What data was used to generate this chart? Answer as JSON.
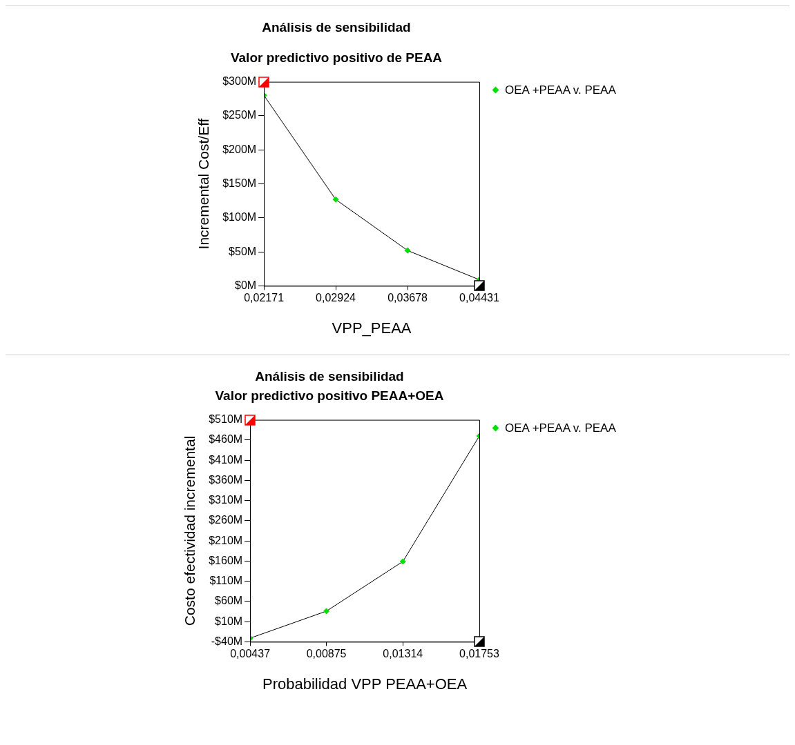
{
  "chart_data": [
    {
      "type": "line",
      "title": "Análisis de sensibilidad",
      "subtitle": "Valor predictivo positivo de PEAA",
      "xlabel": "VPP_PEAA",
      "ylabel": "Incremental Cost/Eff",
      "x": [
        0.02171,
        0.02924,
        0.03678,
        0.04431
      ],
      "series": [
        {
          "name": "OEA +PEAA v. PEAA",
          "color": "#00e000",
          "values": [
            280,
            127,
            52,
            9
          ]
        }
      ],
      "xlim": [
        0.02171,
        0.04431
      ],
      "xticks": [
        {
          "value": 0.02171,
          "label": "0,02171"
        },
        {
          "value": 0.02924,
          "label": "0,02924"
        },
        {
          "value": 0.03678,
          "label": "0,03678"
        },
        {
          "value": 0.04431,
          "label": "0,04431"
        }
      ],
      "ylim": [
        0,
        300
      ],
      "yticks": [
        {
          "value": 0,
          "label": "$0M"
        },
        {
          "value": 50,
          "label": "$50M"
        },
        {
          "value": 100,
          "label": "$100M"
        },
        {
          "value": 150,
          "label": "$150M"
        },
        {
          "value": 200,
          "label": "$200M"
        },
        {
          "value": 250,
          "label": "$250M"
        },
        {
          "value": 300,
          "label": "$300M"
        }
      ],
      "legend": "top right",
      "marker": "diamond",
      "line_style": "solid",
      "grid": false
    },
    {
      "type": "line",
      "title": "Análisis de sensibilidad",
      "subtitle": "Valor predictivo positivo PEAA+OEA",
      "xlabel": "Probabilidad VPP PEAA+OEA",
      "ylabel": "Costo efectividad incremental",
      "x": [
        0.00437,
        0.00875,
        0.01314,
        0.01753
      ],
      "series": [
        {
          "name": "OEA +PEAA v. PEAA",
          "color": "#00e000",
          "values": [
            -31,
            36,
            159,
            470
          ]
        }
      ],
      "xlim": [
        0.00437,
        0.01753
      ],
      "xticks": [
        {
          "value": 0.00437,
          "label": "0,00437"
        },
        {
          "value": 0.00875,
          "label": "0,00875"
        },
        {
          "value": 0.01314,
          "label": "0,01314"
        },
        {
          "value": 0.01753,
          "label": "0,01753"
        }
      ],
      "ylim": [
        -40,
        510
      ],
      "yticks": [
        {
          "value": -40,
          "label": "-$40M"
        },
        {
          "value": 10,
          "label": "$10M"
        },
        {
          "value": 60,
          "label": "$60M"
        },
        {
          "value": 110,
          "label": "$110M"
        },
        {
          "value": 160,
          "label": "$160M"
        },
        {
          "value": 210,
          "label": "$210M"
        },
        {
          "value": 260,
          "label": "$260M"
        },
        {
          "value": 310,
          "label": "$310M"
        },
        {
          "value": 360,
          "label": "$360M"
        },
        {
          "value": 410,
          "label": "$410M"
        },
        {
          "value": 460,
          "label": "$460M"
        },
        {
          "value": 510,
          "label": "$510M"
        }
      ],
      "legend": "top right",
      "marker": "diamond",
      "line_style": "solid",
      "grid": false
    }
  ]
}
